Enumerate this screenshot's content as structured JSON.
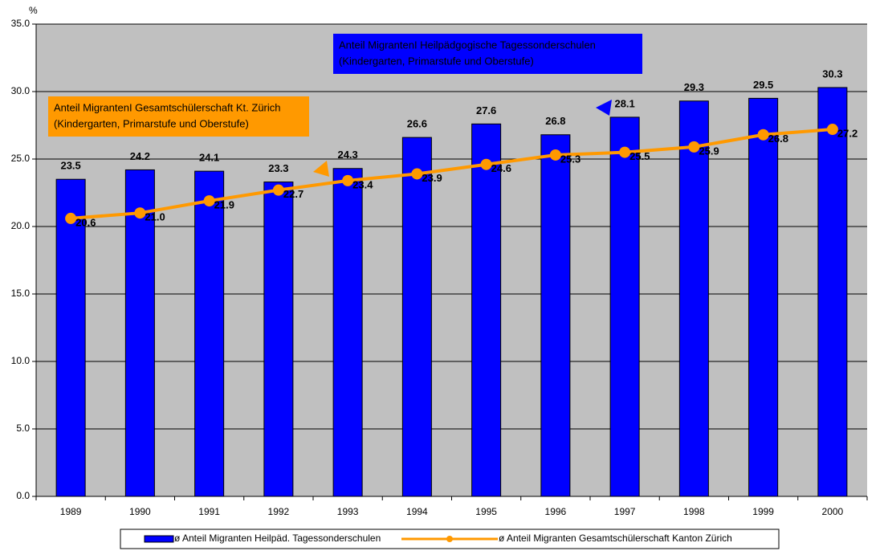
{
  "chart_data": {
    "type": "bar-line",
    "y_label": "%",
    "categories": [
      "1989",
      "1990",
      "1991",
      "1992",
      "1993",
      "1994",
      "1995",
      "1996",
      "1997",
      "1998",
      "1999",
      "2000"
    ],
    "series": [
      {
        "name": "ø Anteil Migranten Heilpäd. Tagessonderschulen",
        "type": "bar",
        "color": "#0000ff",
        "values": [
          23.5,
          24.2,
          24.1,
          23.3,
          24.3,
          26.6,
          27.6,
          26.8,
          28.1,
          29.3,
          29.5,
          30.3
        ]
      },
      {
        "name": "ø Anteil Migranten Gesamtschülerschaft Kanton Zürich",
        "type": "line",
        "color": "#ff9900",
        "values": [
          20.6,
          21.0,
          21.9,
          22.7,
          23.4,
          23.9,
          24.6,
          25.3,
          25.5,
          25.9,
          26.8,
          27.2
        ],
        "value_labels": [
          "20.6",
          "21.0",
          "21.9",
          "22.7",
          "23.4",
          "23.9",
          "24.6",
          "25.3",
          "25.5",
          "25.9",
          "26.8",
          "27.2"
        ]
      }
    ],
    "ylim": [
      0,
      35
    ],
    "yticks": [
      {
        "value": 0,
        "label": "0.0"
      },
      {
        "value": 5,
        "label": "5.0"
      },
      {
        "value": 10,
        "label": "10.0"
      },
      {
        "value": 15,
        "label": "15.0"
      },
      {
        "value": 20,
        "label": "20.0"
      },
      {
        "value": 25,
        "label": "25.0"
      },
      {
        "value": 30,
        "label": "30.0"
      },
      {
        "value": 35,
        "label": "35.0"
      }
    ],
    "grid": true,
    "annotations": [
      {
        "lines": [
          "Anteil MigrantenI Heilpädgogische Tagessonderschulen",
          "(Kindergarten, Primarstufe und Oberstufe)"
        ],
        "color": "#0000ff",
        "text_color": "#ffffff"
      },
      {
        "lines": [
          "Anteil MigrantenI Gesamtschülerschaft Kt. Zürich",
          "(Kindergarten, Primarstufe und Oberstufe)"
        ],
        "color": "#ff9900",
        "text_color": "#000000"
      }
    ]
  }
}
